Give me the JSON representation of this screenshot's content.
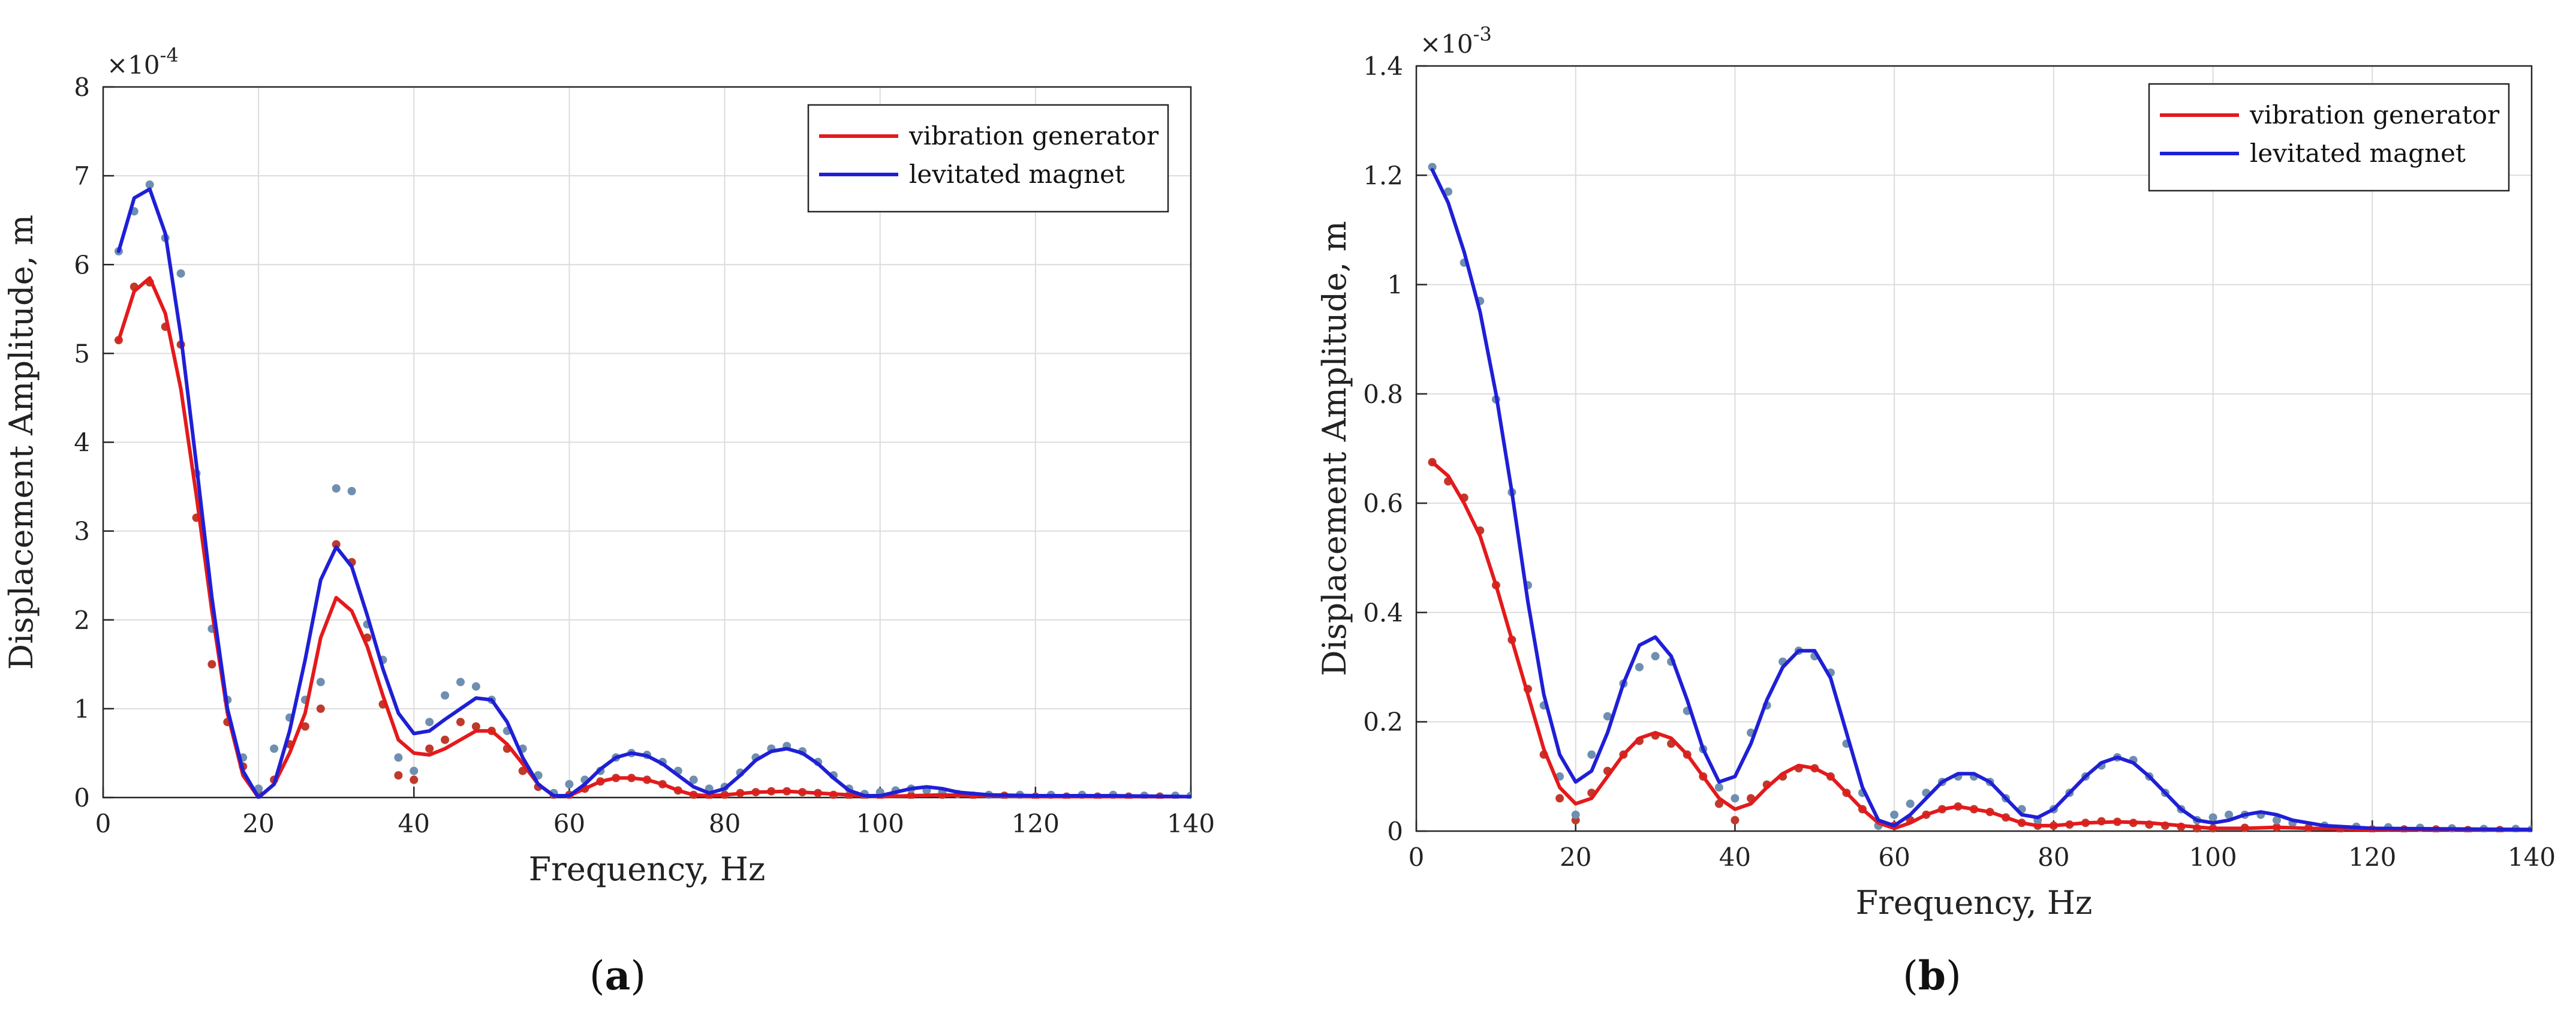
{
  "chart_data": [
    {
      "type": "line",
      "panel_label": "a",
      "xlabel": "Frequency, Hz",
      "ylabel": "Displacement Amplitude, m",
      "exponent_label": "×10",
      "exponent_power": "-4",
      "xlim": [
        0,
        140
      ],
      "ylim": [
        0,
        8
      ],
      "xticks": [
        0,
        20,
        40,
        60,
        80,
        100,
        120,
        140
      ],
      "yticks": [
        0,
        1,
        2,
        3,
        4,
        5,
        6,
        7,
        8
      ],
      "grid": true,
      "legend_position": "top-right",
      "series": [
        {
          "name": "vibration generator",
          "color": "#e31a1c",
          "kind": "line",
          "x": [
            2,
            4,
            6,
            8,
            10,
            12,
            14,
            16,
            18,
            20,
            22,
            24,
            26,
            28,
            30,
            32,
            34,
            36,
            38,
            40,
            42,
            44,
            46,
            48,
            50,
            52,
            54,
            56,
            58,
            60,
            62,
            64,
            66,
            68,
            70,
            72,
            74,
            76,
            78,
            80,
            84,
            88,
            92,
            96,
            100,
            104,
            108,
            112,
            120,
            130,
            140
          ],
          "y": [
            5.15,
            5.7,
            5.85,
            5.45,
            4.6,
            3.4,
            2.1,
            0.95,
            0.25,
            0.0,
            0.15,
            0.5,
            0.95,
            1.8,
            2.25,
            2.1,
            1.7,
            1.15,
            0.65,
            0.5,
            0.48,
            0.55,
            0.65,
            0.75,
            0.75,
            0.6,
            0.38,
            0.15,
            0.02,
            0.02,
            0.1,
            0.18,
            0.22,
            0.22,
            0.2,
            0.15,
            0.08,
            0.03,
            0.02,
            0.03,
            0.06,
            0.07,
            0.05,
            0.03,
            0.01,
            0.02,
            0.03,
            0.02,
            0.01,
            0.01,
            0.01
          ]
        },
        {
          "name": "levitated magnet",
          "color": "#1f1fd6",
          "kind": "line",
          "x": [
            2,
            4,
            6,
            8,
            10,
            12,
            14,
            16,
            18,
            20,
            22,
            24,
            26,
            28,
            30,
            32,
            34,
            36,
            38,
            40,
            42,
            44,
            46,
            48,
            50,
            52,
            54,
            56,
            58,
            60,
            62,
            64,
            66,
            68,
            70,
            72,
            74,
            76,
            78,
            80,
            82,
            84,
            86,
            88,
            90,
            92,
            94,
            96,
            98,
            100,
            102,
            104,
            106,
            108,
            110,
            114,
            120,
            130,
            140
          ],
          "y": [
            6.15,
            6.75,
            6.85,
            6.35,
            5.2,
            3.75,
            2.25,
            1.0,
            0.3,
            0.0,
            0.15,
            0.75,
            1.55,
            2.45,
            2.82,
            2.6,
            2.05,
            1.45,
            0.95,
            0.72,
            0.75,
            0.88,
            1.0,
            1.12,
            1.1,
            0.85,
            0.45,
            0.15,
            0.02,
            0.02,
            0.15,
            0.32,
            0.45,
            0.5,
            0.47,
            0.38,
            0.25,
            0.12,
            0.05,
            0.1,
            0.25,
            0.42,
            0.52,
            0.55,
            0.5,
            0.38,
            0.22,
            0.08,
            0.02,
            0.02,
            0.06,
            0.1,
            0.12,
            0.1,
            0.06,
            0.03,
            0.02,
            0.02,
            0.01
          ]
        },
        {
          "name": "",
          "color": "#c0392b",
          "kind": "points",
          "x": [
            2,
            4,
            6,
            8,
            10,
            12,
            14,
            16,
            18,
            20,
            22,
            24,
            26,
            28,
            30,
            32,
            34,
            36,
            38,
            40,
            42,
            44,
            46,
            48,
            50,
            52,
            54,
            56,
            58,
            60,
            62,
            64,
            66,
            68,
            70,
            72,
            74,
            76,
            78,
            80,
            82,
            84,
            86,
            88,
            90,
            92,
            94,
            96,
            98,
            100,
            104,
            108,
            112,
            116,
            120,
            124,
            128,
            132,
            136,
            140
          ],
          "y": [
            5.15,
            5.75,
            5.8,
            5.3,
            5.1,
            3.15,
            1.5,
            0.85,
            0.35,
            0.05,
            0.2,
            0.6,
            0.8,
            1.0,
            2.85,
            2.65,
            1.8,
            1.05,
            0.25,
            0.2,
            0.55,
            0.65,
            0.85,
            0.8,
            0.75,
            0.55,
            0.3,
            0.12,
            0.03,
            0.03,
            0.1,
            0.18,
            0.22,
            0.22,
            0.2,
            0.15,
            0.08,
            0.03,
            0.02,
            0.03,
            0.05,
            0.06,
            0.07,
            0.07,
            0.06,
            0.05,
            0.03,
            0.02,
            0.01,
            0.02,
            0.02,
            0.03,
            0.02,
            0.02,
            0.01,
            0.01,
            0.01,
            0.01,
            0.01,
            0.01
          ]
        },
        {
          "name": "",
          "color": "#6f8fb0",
          "kind": "points",
          "x": [
            2,
            4,
            6,
            8,
            10,
            12,
            14,
            16,
            18,
            20,
            22,
            24,
            26,
            28,
            30,
            32,
            34,
            36,
            38,
            40,
            42,
            44,
            46,
            48,
            50,
            52,
            54,
            56,
            58,
            60,
            62,
            64,
            66,
            68,
            70,
            72,
            74,
            76,
            78,
            80,
            82,
            84,
            86,
            88,
            90,
            92,
            94,
            96,
            98,
            100,
            102,
            104,
            106,
            108,
            110,
            114,
            118,
            122,
            126,
            130,
            134,
            138,
            140
          ],
          "y": [
            6.15,
            6.6,
            6.9,
            6.3,
            5.9,
            3.65,
            1.9,
            1.1,
            0.45,
            0.1,
            0.55,
            0.9,
            1.1,
            1.3,
            3.48,
            3.45,
            1.95,
            1.55,
            0.45,
            0.3,
            0.85,
            1.15,
            1.3,
            1.25,
            1.1,
            0.75,
            0.55,
            0.25,
            0.05,
            0.15,
            0.2,
            0.3,
            0.45,
            0.5,
            0.48,
            0.4,
            0.3,
            0.2,
            0.1,
            0.12,
            0.28,
            0.45,
            0.55,
            0.58,
            0.52,
            0.4,
            0.25,
            0.1,
            0.04,
            0.06,
            0.08,
            0.1,
            0.08,
            0.06,
            0.04,
            0.03,
            0.03,
            0.03,
            0.03,
            0.03,
            0.02,
            0.02,
            0.02
          ]
        }
      ]
    },
    {
      "type": "line",
      "panel_label": "b",
      "xlabel": "Frequency, Hz",
      "ylabel": "Displacement Amplitude, m",
      "exponent_label": "×10",
      "exponent_power": "-3",
      "xlim": [
        0,
        140
      ],
      "ylim": [
        0,
        1.4
      ],
      "xticks": [
        0,
        20,
        40,
        60,
        80,
        100,
        120,
        140
      ],
      "yticks": [
        0,
        0.2,
        0.4,
        0.6,
        0.8,
        1,
        1.2,
        1.4
      ],
      "grid": true,
      "legend_position": "top-right",
      "series": [
        {
          "name": "vibration generator",
          "color": "#e31a1c",
          "kind": "line",
          "x": [
            2,
            4,
            6,
            8,
            10,
            12,
            14,
            16,
            18,
            20,
            22,
            24,
            26,
            28,
            30,
            32,
            34,
            36,
            38,
            40,
            42,
            44,
            46,
            48,
            50,
            52,
            54,
            56,
            58,
            60,
            62,
            64,
            66,
            68,
            70,
            72,
            74,
            76,
            78,
            80,
            84,
            88,
            92,
            96,
            100,
            104,
            108,
            112,
            120,
            130,
            140
          ],
          "y": [
            0.675,
            0.65,
            0.6,
            0.54,
            0.45,
            0.35,
            0.25,
            0.15,
            0.08,
            0.05,
            0.06,
            0.1,
            0.14,
            0.17,
            0.18,
            0.17,
            0.14,
            0.1,
            0.06,
            0.04,
            0.05,
            0.08,
            0.105,
            0.12,
            0.115,
            0.1,
            0.07,
            0.04,
            0.015,
            0.005,
            0.015,
            0.03,
            0.04,
            0.045,
            0.04,
            0.035,
            0.025,
            0.015,
            0.01,
            0.01,
            0.015,
            0.017,
            0.015,
            0.01,
            0.005,
            0.005,
            0.007,
            0.005,
            0.003,
            0.003,
            0.002
          ]
        },
        {
          "name": "levitated magnet",
          "color": "#1f1fd6",
          "kind": "line",
          "x": [
            2,
            4,
            6,
            8,
            10,
            12,
            14,
            16,
            18,
            20,
            22,
            24,
            26,
            28,
            30,
            32,
            34,
            36,
            38,
            40,
            42,
            44,
            46,
            48,
            50,
            52,
            54,
            56,
            58,
            60,
            62,
            64,
            66,
            68,
            70,
            72,
            74,
            76,
            78,
            80,
            82,
            84,
            86,
            88,
            90,
            92,
            94,
            96,
            98,
            100,
            102,
            104,
            106,
            108,
            110,
            114,
            120,
            130,
            140
          ],
          "y": [
            1.21,
            1.15,
            1.06,
            0.95,
            0.8,
            0.62,
            0.42,
            0.25,
            0.14,
            0.09,
            0.11,
            0.18,
            0.27,
            0.34,
            0.355,
            0.32,
            0.24,
            0.15,
            0.09,
            0.1,
            0.16,
            0.24,
            0.3,
            0.33,
            0.33,
            0.28,
            0.18,
            0.08,
            0.02,
            0.01,
            0.03,
            0.06,
            0.09,
            0.105,
            0.105,
            0.09,
            0.06,
            0.03,
            0.025,
            0.04,
            0.07,
            0.1,
            0.125,
            0.135,
            0.125,
            0.1,
            0.07,
            0.04,
            0.02,
            0.015,
            0.02,
            0.03,
            0.035,
            0.03,
            0.02,
            0.01,
            0.005,
            0.004,
            0.003
          ]
        },
        {
          "name": "",
          "color": "#c0392b",
          "kind": "points",
          "x": [
            2,
            4,
            6,
            8,
            10,
            12,
            14,
            16,
            18,
            20,
            22,
            24,
            26,
            28,
            30,
            32,
            34,
            36,
            38,
            40,
            42,
            44,
            46,
            48,
            50,
            52,
            54,
            56,
            58,
            60,
            62,
            64,
            66,
            68,
            70,
            72,
            74,
            76,
            78,
            80,
            82,
            84,
            86,
            88,
            90,
            92,
            94,
            96,
            98,
            100,
            104,
            108,
            112,
            116,
            120,
            124,
            128,
            132,
            136,
            140
          ],
          "y": [
            0.675,
            0.64,
            0.61,
            0.55,
            0.45,
            0.35,
            0.26,
            0.14,
            0.06,
            0.02,
            0.07,
            0.11,
            0.14,
            0.165,
            0.175,
            0.16,
            0.14,
            0.1,
            0.05,
            0.02,
            0.06,
            0.085,
            0.1,
            0.115,
            0.115,
            0.1,
            0.07,
            0.04,
            0.01,
            0.01,
            0.02,
            0.03,
            0.04,
            0.045,
            0.04,
            0.035,
            0.025,
            0.015,
            0.01,
            0.01,
            0.012,
            0.015,
            0.018,
            0.017,
            0.015,
            0.012,
            0.01,
            0.008,
            0.005,
            0.005,
            0.006,
            0.007,
            0.006,
            0.004,
            0.003,
            0.003,
            0.003,
            0.002,
            0.002,
            0.002
          ]
        },
        {
          "name": "",
          "color": "#6f8fb0",
          "kind": "points",
          "x": [
            2,
            4,
            6,
            8,
            10,
            12,
            14,
            16,
            18,
            20,
            22,
            24,
            26,
            28,
            30,
            32,
            34,
            36,
            38,
            40,
            42,
            44,
            46,
            48,
            50,
            52,
            54,
            56,
            58,
            60,
            62,
            64,
            66,
            68,
            70,
            72,
            74,
            76,
            78,
            80,
            82,
            84,
            86,
            88,
            90,
            92,
            94,
            96,
            98,
            100,
            102,
            104,
            106,
            108,
            110,
            114,
            118,
            122,
            126,
            130,
            134,
            138,
            140
          ],
          "y": [
            1.215,
            1.17,
            1.04,
            0.97,
            0.79,
            0.62,
            0.45,
            0.23,
            0.1,
            0.03,
            0.14,
            0.21,
            0.27,
            0.3,
            0.32,
            0.31,
            0.22,
            0.15,
            0.08,
            0.06,
            0.18,
            0.23,
            0.31,
            0.33,
            0.32,
            0.29,
            0.16,
            0.07,
            0.01,
            0.03,
            0.05,
            0.07,
            0.09,
            0.1,
            0.1,
            0.09,
            0.06,
            0.04,
            0.02,
            0.04,
            0.07,
            0.1,
            0.12,
            0.135,
            0.13,
            0.1,
            0.07,
            0.04,
            0.02,
            0.025,
            0.03,
            0.03,
            0.03,
            0.02,
            0.015,
            0.01,
            0.008,
            0.007,
            0.006,
            0.005,
            0.004,
            0.004,
            0.003
          ]
        }
      ]
    }
  ],
  "captions": [
    "(a)",
    "(b)"
  ]
}
